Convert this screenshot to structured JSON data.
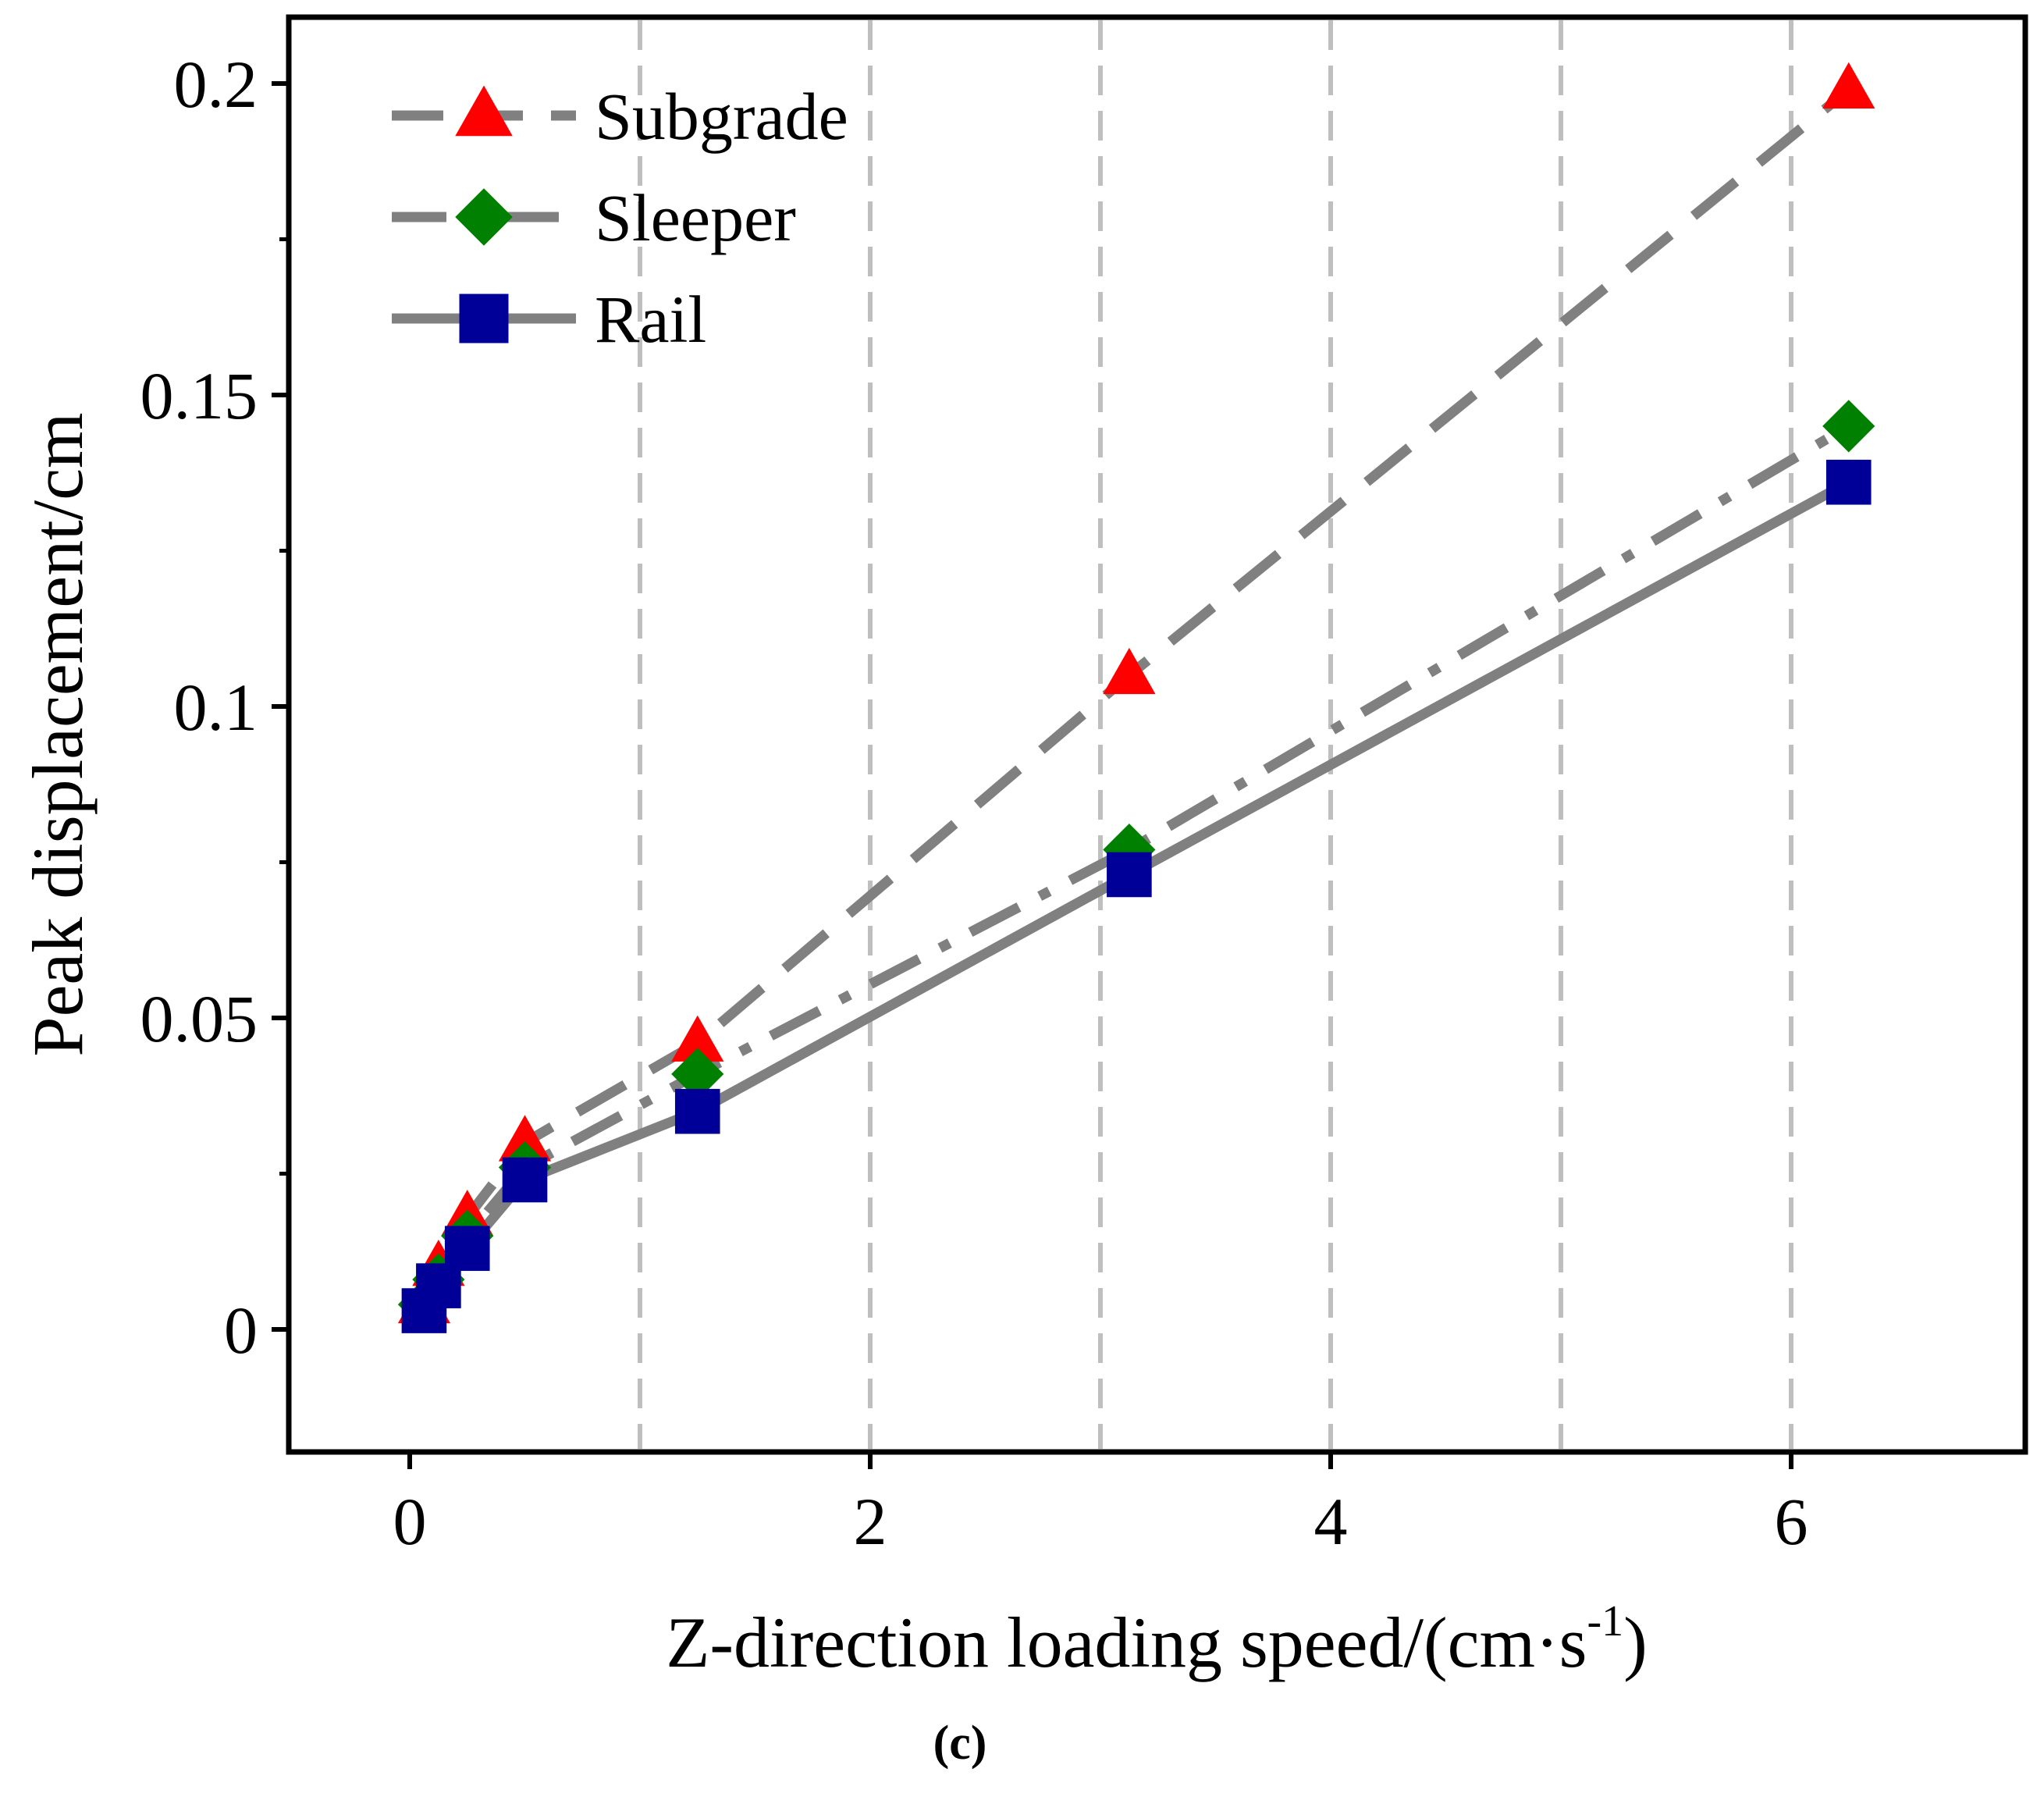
{
  "chart_data": {
    "type": "line",
    "panel_label": "(c)",
    "xlabel_main": "Z-direction loading speed/(cm·s",
    "xlabel_sup": "-1",
    "xlabel_end": ")",
    "ylabel": "Peak displacement/cm",
    "xlim": [
      -0.5,
      7.0
    ],
    "ylim": [
      -0.02,
      0.21
    ],
    "xticks": [
      0,
      2,
      4,
      6
    ],
    "xtick_labels": [
      "0",
      "2",
      "4",
      "6"
    ],
    "yticks": [
      0,
      0.05,
      0.1,
      0.15,
      0.2
    ],
    "ytick_labels": [
      "0",
      "0.05",
      "0.1",
      "0.15",
      "0.2"
    ],
    "grid": {
      "x": true,
      "y": false,
      "x_positions": [
        1,
        2,
        3,
        4,
        5,
        6
      ],
      "style": "dashed",
      "color": "#bfbfbf"
    },
    "legend_position": "top-left",
    "x": [
      0.0625,
      0.125,
      0.25,
      0.5,
      1.25,
      3.125,
      6.25
    ],
    "series": [
      {
        "name": "Subgrade",
        "marker": "triangle",
        "marker_color": "#ff0000",
        "line_style": "dash",
        "line_color": "#808080",
        "values": [
          0.004,
          0.01,
          0.018,
          0.03,
          0.046,
          0.105,
          0.199
        ]
      },
      {
        "name": "Sleeper",
        "marker": "diamond",
        "marker_color": "#008000",
        "line_style": "dashdot",
        "line_color": "#808080",
        "values": [
          0.004,
          0.008,
          0.015,
          0.026,
          0.041,
          0.077,
          0.145
        ]
      },
      {
        "name": "Rail",
        "marker": "square",
        "marker_color": "#000099",
        "line_style": "solid",
        "line_color": "#808080",
        "values": [
          0.003,
          0.007,
          0.013,
          0.024,
          0.035,
          0.073,
          0.136
        ]
      }
    ]
  }
}
